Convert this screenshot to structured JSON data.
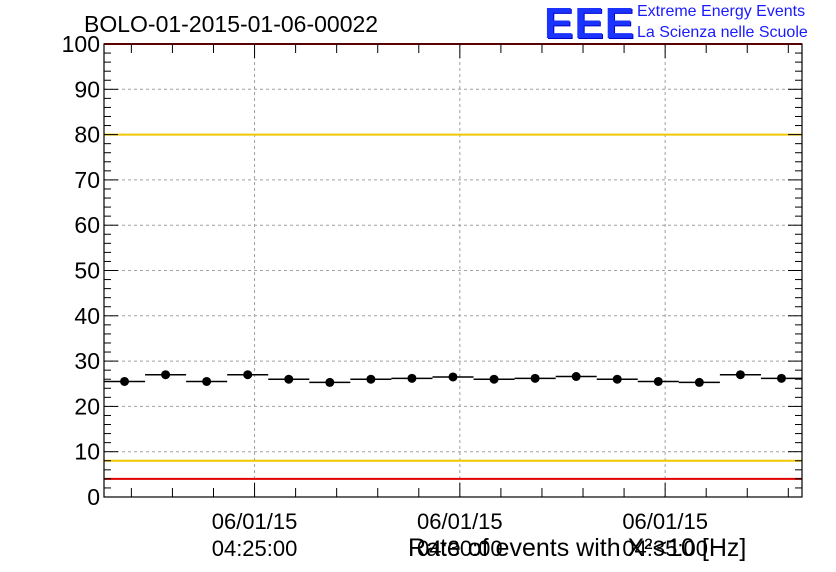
{
  "header": {
    "title": "BOLO-01-2015-01-06-00022"
  },
  "logo": {
    "mark": "EEE",
    "line1": "Extreme Energy Events",
    "line2": "La Scienza nelle Scuole",
    "color": "#1a33ff"
  },
  "chart_data": {
    "type": "scatter",
    "xlabel": "Rate of events with X²<10 [Hz]",
    "ylabel": "",
    "ylim": [
      0,
      100
    ],
    "yticks": [
      0,
      10,
      20,
      30,
      40,
      50,
      60,
      70,
      80,
      90,
      100
    ],
    "x_time_range": [
      "04:21:20",
      "04:38:20"
    ],
    "xtick_labels": [
      {
        "date": "06/01/15",
        "time": "04:25:00"
      },
      {
        "date": "06/01/15",
        "time": "04:30:00"
      },
      {
        "date": "06/01/15",
        "time": "04:35:00"
      }
    ],
    "series": [
      {
        "x": [
          "04:21:50",
          "04:22:50",
          "04:23:50",
          "04:24:50",
          "04:25:50",
          "04:26:50",
          "04:27:50",
          "04:28:50",
          "04:29:50",
          "04:30:50",
          "04:31:50",
          "04:32:50",
          "04:33:50",
          "04:34:50",
          "04:35:50",
          "04:36:50",
          "04:37:50"
        ],
        "y": [
          25.5,
          27.0,
          25.5,
          27.0,
          26.0,
          25.3,
          26.0,
          26.2,
          26.5,
          26.0,
          26.2,
          26.6,
          26.0,
          25.5,
          25.3,
          27.0,
          26.2
        ],
        "bin_width_s": 60,
        "color": "#000000"
      }
    ],
    "reference_lines": [
      {
        "y": 80,
        "color": "#f0c800"
      },
      {
        "y": 8,
        "color": "#f0c800"
      },
      {
        "y": 4,
        "color": "#e00000"
      },
      {
        "y": 100,
        "color": "#e00000"
      }
    ],
    "grid": true
  }
}
